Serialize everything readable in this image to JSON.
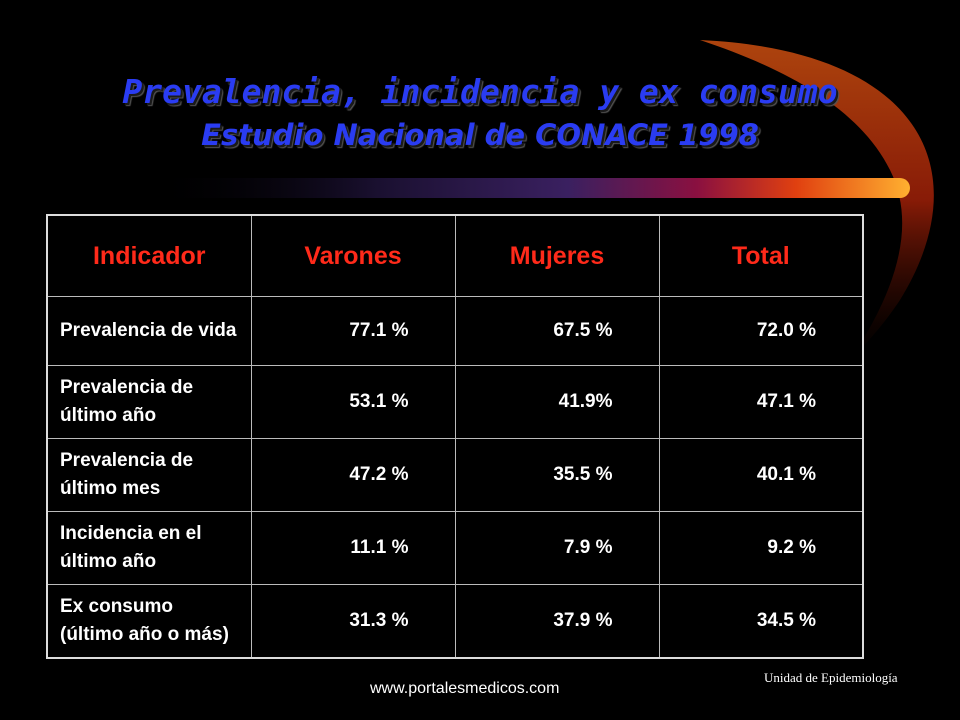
{
  "title": "Prevalencia, incidencia y ex consumo",
  "subtitle": "Estudio Nacional de CONACE 1998",
  "table": {
    "headers": [
      "Indicador",
      "Varones",
      "Mujeres",
      "Total"
    ],
    "rows": [
      {
        "label": "Prevalencia de vida",
        "varones": "77.1 %",
        "mujeres": "67.5 %",
        "total": "72.0 %"
      },
      {
        "label": "Prevalencia de último año",
        "varones": "53.1 %",
        "mujeres": "41.9%",
        "total": "47.1 %"
      },
      {
        "label": "Prevalencia de último mes",
        "varones": "47.2 %",
        "mujeres": "35.5 %",
        "total": "40.1 %"
      },
      {
        "label": "Incidencia en el último año",
        "varones": "11.1 %",
        "mujeres": "7.9 %",
        "total": "9.2 %"
      },
      {
        "label": "Ex consumo (último año o más)",
        "varones": "31.3 %",
        "mujeres": "37.9 %",
        "total": "34.5 %"
      }
    ]
  },
  "footer": {
    "url": "www.portalesmedicos.com",
    "unit": "Unidad de Epidemiología"
  },
  "colors": {
    "title": "#2a3cf2",
    "header_text": "#ff2a1a",
    "background": "#000000"
  }
}
